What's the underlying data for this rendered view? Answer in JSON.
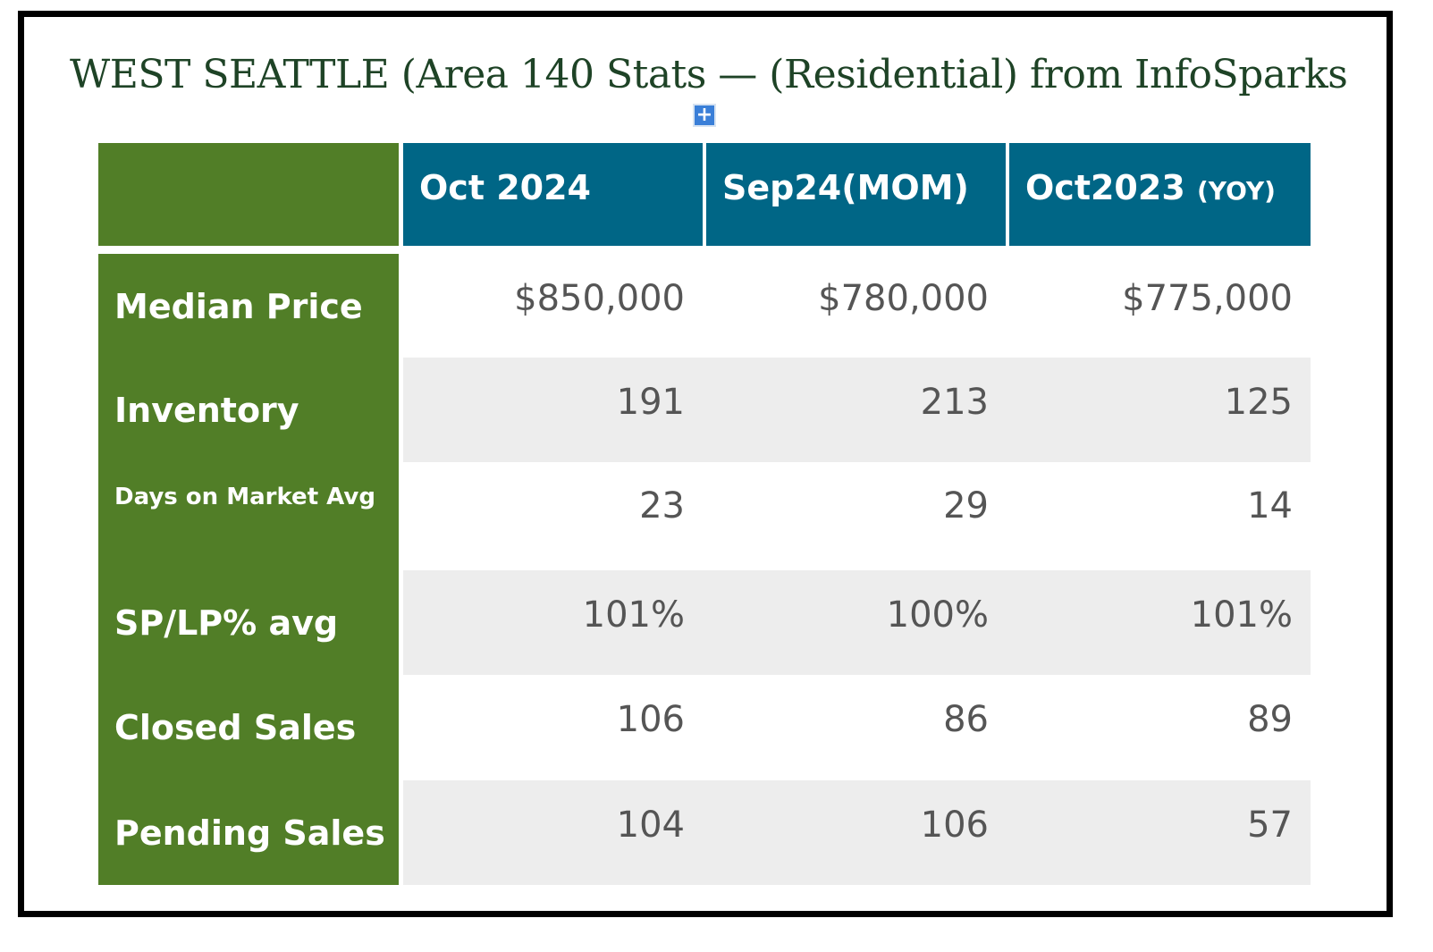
{
  "title": "WEST SEATTLE  (Area 140 Stats — (Residential) from InfoSparks",
  "add_button": "+",
  "columns": {
    "c1": "Oct 2024",
    "c2": "Sep24(MOM)",
    "c3_main": "Oct2023",
    "c3_sub": "(YOY)"
  },
  "rows": [
    {
      "label": "Median Price",
      "c1": "$850,000",
      "c2": "$780,000",
      "c3": "$775,000"
    },
    {
      "label": "Inventory",
      "c1": "191",
      "c2": "213",
      "c3": "125"
    },
    {
      "label": "Days on Market Avg",
      "c1": "23",
      "c2": "29",
      "c3": "14"
    },
    {
      "label": "SP/LP% avg",
      "c1": "101%",
      "c2": "100%",
      "c3": "101%"
    },
    {
      "label": "Closed Sales",
      "c1": "106",
      "c2": "86",
      "c3": "89"
    },
    {
      "label": "Pending Sales",
      "c1": "104",
      "c2": "106",
      "c3": "57"
    }
  ],
  "colors": {
    "title": "#1e4326",
    "label_column": "#517e27",
    "header": "#006686",
    "row_shade": "#ededed",
    "value_text": "#555555"
  }
}
